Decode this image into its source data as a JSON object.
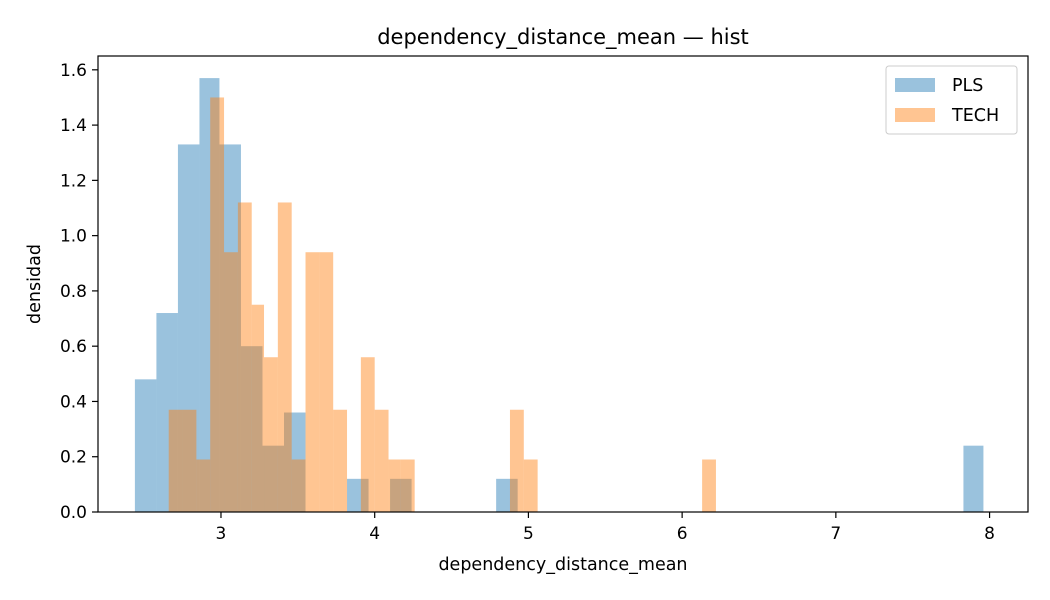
{
  "chart_data": {
    "type": "bar",
    "histogram": true,
    "title": "dependency_distance_mean — hist",
    "xlabel": "dependency_distance_mean",
    "ylabel": "densidad",
    "xlim": [
      2.2,
      8.25
    ],
    "ylim": [
      0,
      1.65
    ],
    "xticks": [
      3,
      4,
      5,
      6,
      7,
      8
    ],
    "yticks": [
      0.0,
      0.2,
      0.4,
      0.6,
      0.8,
      1.0,
      1.2,
      1.4,
      1.6
    ],
    "grid": false,
    "legend_position": "top-right",
    "alpha": 0.45,
    "series": [
      {
        "name": "PLS",
        "color": "#1f77b4",
        "bins": [
          {
            "x0": 2.44,
            "x1": 2.58,
            "density": 0.48
          },
          {
            "x0": 2.58,
            "x1": 2.72,
            "density": 0.72
          },
          {
            "x0": 2.72,
            "x1": 2.86,
            "density": 1.33
          },
          {
            "x0": 2.86,
            "x1": 2.99,
            "density": 1.57
          },
          {
            "x0": 2.99,
            "x1": 3.13,
            "density": 1.33
          },
          {
            "x0": 3.13,
            "x1": 3.27,
            "density": 0.6
          },
          {
            "x0": 3.27,
            "x1": 3.41,
            "density": 0.24
          },
          {
            "x0": 3.41,
            "x1": 3.55,
            "density": 0.36
          },
          {
            "x0": 3.55,
            "x1": 3.69,
            "density": 0.0
          },
          {
            "x0": 3.69,
            "x1": 3.82,
            "density": 0.0
          },
          {
            "x0": 3.82,
            "x1": 3.96,
            "density": 0.12
          },
          {
            "x0": 3.96,
            "x1": 4.1,
            "density": 0.0
          },
          {
            "x0": 4.1,
            "x1": 4.24,
            "density": 0.12
          },
          {
            "x0": 4.24,
            "x1": 4.38,
            "density": 0.0
          },
          {
            "x0": 4.38,
            "x1": 4.51,
            "density": 0.0
          },
          {
            "x0": 4.51,
            "x1": 4.65,
            "density": 0.0
          },
          {
            "x0": 4.65,
            "x1": 4.79,
            "density": 0.0
          },
          {
            "x0": 4.79,
            "x1": 4.93,
            "density": 0.12
          },
          {
            "x0": 7.83,
            "x1": 7.96,
            "density": 0.24
          }
        ]
      },
      {
        "name": "TECH",
        "color": "#ff7f0e",
        "bins": [
          {
            "x0": 2.66,
            "x1": 2.75,
            "density": 0.37
          },
          {
            "x0": 2.75,
            "x1": 2.84,
            "density": 0.37
          },
          {
            "x0": 2.84,
            "x1": 2.93,
            "density": 0.19
          },
          {
            "x0": 2.93,
            "x1": 3.02,
            "density": 1.5
          },
          {
            "x0": 3.02,
            "x1": 3.11,
            "density": 0.94
          },
          {
            "x0": 3.11,
            "x1": 3.2,
            "density": 1.12
          },
          {
            "x0": 3.2,
            "x1": 3.28,
            "density": 0.75
          },
          {
            "x0": 3.28,
            "x1": 3.37,
            "density": 0.56
          },
          {
            "x0": 3.37,
            "x1": 3.46,
            "density": 1.12
          },
          {
            "x0": 3.46,
            "x1": 3.55,
            "density": 0.19
          },
          {
            "x0": 3.55,
            "x1": 3.64,
            "density": 0.94
          },
          {
            "x0": 3.64,
            "x1": 3.73,
            "density": 0.94
          },
          {
            "x0": 3.73,
            "x1": 3.82,
            "density": 0.37
          },
          {
            "x0": 3.82,
            "x1": 3.91,
            "density": 0.0
          },
          {
            "x0": 3.91,
            "x1": 4.0,
            "density": 0.56
          },
          {
            "x0": 4.0,
            "x1": 4.09,
            "density": 0.37
          },
          {
            "x0": 4.09,
            "x1": 4.17,
            "density": 0.19
          },
          {
            "x0": 4.17,
            "x1": 4.26,
            "density": 0.19
          },
          {
            "x0": 4.88,
            "x1": 4.97,
            "density": 0.37
          },
          {
            "x0": 4.97,
            "x1": 5.06,
            "density": 0.19
          },
          {
            "x0": 6.13,
            "x1": 6.22,
            "density": 0.19
          }
        ]
      }
    ]
  }
}
